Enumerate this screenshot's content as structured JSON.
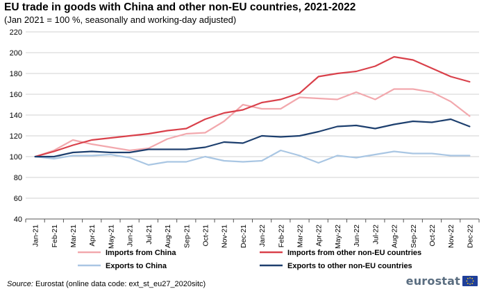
{
  "header": {
    "title": "EU trade in goods with China and other non-EU countries, 2021-2022",
    "subtitle": "(Jan 2021 = 100 %, seasonally and working-day adjusted)"
  },
  "footer": {
    "source_label": "Source:",
    "source_text": " Eurostat (online data code: ext_st_eu27_2020sitc)",
    "logo_text": "eurostat"
  },
  "chart_data": {
    "type": "line",
    "title": "EU trade in goods with China and other non-EU countries, 2021-2022",
    "subtitle": "(Jan 2021 = 100 %, seasonally and working-day adjusted)",
    "x": [
      "Jan-21",
      "Feb-21",
      "Mar-21",
      "Apr-21",
      "May-21",
      "Jun-21",
      "Jul-21",
      "Aug-21",
      "Sep-21",
      "Oct-21",
      "Nov-21",
      "Dec-21",
      "Jan-22",
      "Feb-22",
      "Mar-22",
      "Apr-22",
      "May-22",
      "Jun-22",
      "Jul-22",
      "Aug-22",
      "Sep-22",
      "Oct-22",
      "Nov-22",
      "Dec-22"
    ],
    "ylim": [
      40,
      220
    ],
    "yticks": [
      40,
      60,
      80,
      100,
      120,
      140,
      160,
      180,
      200,
      220
    ],
    "grid": "horizontal",
    "legend_position": "bottom",
    "series": [
      {
        "name": "Imports from China",
        "color": "#f2a8ad",
        "values": [
          100,
          106,
          116,
          112,
          109,
          106,
          108,
          117,
          122,
          123,
          134,
          150,
          146,
          146,
          157,
          156,
          155,
          162,
          155,
          165,
          165,
          162,
          153,
          139
        ]
      },
      {
        "name": "Imports from other non-EU countries",
        "color": "#d9404a",
        "values": [
          100,
          105,
          111,
          116,
          118,
          120,
          122,
          125,
          127,
          136,
          142,
          145,
          152,
          155,
          161,
          177,
          180,
          182,
          187,
          196,
          193,
          185,
          177,
          172
        ]
      },
      {
        "name": "Exports to China",
        "color": "#a9c6e3",
        "values": [
          100,
          98,
          101,
          101,
          102,
          99,
          92,
          95,
          95,
          100,
          96,
          95,
          96,
          106,
          101,
          94,
          101,
          99,
          102,
          105,
          103,
          103,
          101,
          101
        ]
      },
      {
        "name": "Exports to other non-EU countries",
        "color": "#1d3f6e",
        "values": [
          100,
          100,
          104,
          105,
          104,
          104,
          107,
          107,
          107,
          109,
          114,
          113,
          120,
          119,
          120,
          124,
          129,
          130,
          127,
          131,
          134,
          133,
          136,
          129
        ]
      }
    ]
  }
}
